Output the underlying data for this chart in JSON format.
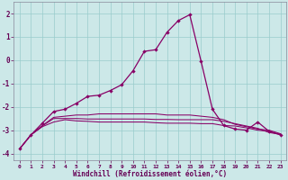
{
  "bg_color": "#cce8e8",
  "grid_color": "#99cccc",
  "line_color": "#880066",
  "xlim_min": -0.5,
  "xlim_max": 23.5,
  "ylim_min": -4.3,
  "ylim_max": 2.5,
  "yticks": [
    -4,
    -3,
    -2,
    -1,
    0,
    1,
    2
  ],
  "xticks": [
    0,
    1,
    2,
    3,
    4,
    5,
    6,
    7,
    8,
    9,
    10,
    11,
    12,
    13,
    14,
    15,
    16,
    17,
    18,
    19,
    20,
    21,
    22,
    23
  ],
  "xlabel": "Windchill (Refroidissement éolien,°C)",
  "series1_x": [
    0,
    1,
    2,
    3,
    4,
    5,
    6,
    7,
    8,
    9,
    10,
    11,
    12,
    13,
    14,
    15,
    16,
    17,
    18,
    19,
    20,
    21,
    22,
    23
  ],
  "series1_y": [
    -3.8,
    -3.2,
    -2.7,
    -2.2,
    -2.1,
    -1.85,
    -1.55,
    -1.5,
    -1.3,
    -1.05,
    -0.45,
    0.38,
    0.45,
    1.2,
    1.7,
    1.95,
    -0.05,
    -2.1,
    -2.8,
    -2.95,
    -3.0,
    -2.65,
    -3.05,
    -3.2
  ],
  "series2_x": [
    0,
    1,
    2,
    3,
    4,
    5,
    6,
    7,
    8,
    9,
    10,
    11,
    12,
    13,
    14,
    15,
    16,
    17,
    18,
    19,
    20,
    21,
    22,
    23
  ],
  "series2_y": [
    -3.8,
    -3.2,
    -2.8,
    -2.45,
    -2.4,
    -2.35,
    -2.35,
    -2.3,
    -2.3,
    -2.3,
    -2.3,
    -2.3,
    -2.3,
    -2.35,
    -2.35,
    -2.35,
    -2.4,
    -2.45,
    -2.55,
    -2.75,
    -2.85,
    -2.95,
    -3.0,
    -3.15
  ],
  "series3_x": [
    0,
    1,
    2,
    3,
    4,
    5,
    6,
    7,
    8,
    9,
    10,
    11,
    12,
    13,
    14,
    15,
    16,
    17,
    18,
    19,
    20,
    21,
    22,
    23
  ],
  "series3_y": [
    -3.8,
    -3.2,
    -2.85,
    -2.65,
    -2.55,
    -2.6,
    -2.62,
    -2.65,
    -2.65,
    -2.65,
    -2.65,
    -2.65,
    -2.68,
    -2.7,
    -2.7,
    -2.7,
    -2.72,
    -2.72,
    -2.8,
    -2.82,
    -2.9,
    -3.0,
    -3.05,
    -3.18
  ],
  "series4_x": [
    0,
    1,
    2,
    3,
    4,
    5,
    6,
    7,
    8,
    9,
    10,
    11,
    12,
    13,
    14,
    15,
    16,
    17,
    18,
    19,
    20,
    21,
    22,
    23
  ],
  "series4_y": [
    -3.8,
    -3.2,
    -2.82,
    -2.5,
    -2.5,
    -2.5,
    -2.52,
    -2.52,
    -2.52,
    -2.52,
    -2.52,
    -2.52,
    -2.54,
    -2.54,
    -2.55,
    -2.55,
    -2.55,
    -2.55,
    -2.62,
    -2.72,
    -2.82,
    -2.92,
    -3.1,
    -3.18
  ]
}
